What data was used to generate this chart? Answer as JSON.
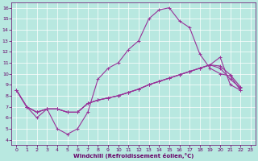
{
  "bg_color": "#b8e8e0",
  "line_color": "#993399",
  "marker": "+",
  "xlabel": "Windchill (Refroidissement éolien,°C)",
  "xlabel_color": "#660066",
  "tick_color": "#660066",
  "xlim": [
    -0.5,
    23.5
  ],
  "ylim": [
    3.5,
    16.5
  ],
  "xticks": [
    0,
    1,
    2,
    3,
    4,
    5,
    6,
    7,
    8,
    9,
    10,
    11,
    12,
    13,
    14,
    15,
    16,
    17,
    18,
    19,
    20,
    21,
    22,
    23
  ],
  "yticks": [
    4,
    5,
    6,
    7,
    8,
    9,
    10,
    11,
    12,
    13,
    14,
    15,
    16
  ],
  "series_x": [
    [
      0,
      1,
      2,
      3,
      4,
      5,
      6,
      7,
      8,
      9,
      10,
      11,
      12,
      13,
      14,
      15,
      16,
      17,
      18,
      19,
      20,
      21,
      22
    ],
    [
      0,
      1,
      2,
      3,
      4,
      5,
      6,
      7,
      8,
      9,
      10,
      11,
      12,
      13,
      14,
      15,
      16,
      17,
      18,
      19,
      20,
      21,
      22
    ],
    [
      0,
      1,
      2,
      3,
      4,
      5,
      6,
      7,
      8,
      9,
      10,
      11,
      12,
      13,
      14,
      15,
      16,
      17,
      18,
      19,
      20,
      21,
      22
    ],
    [
      0,
      1,
      2,
      3,
      4,
      5,
      6,
      7,
      8,
      9,
      10,
      11,
      12,
      13,
      14,
      15,
      16,
      17,
      18,
      19,
      20,
      21,
      22
    ]
  ],
  "series_y": [
    [
      8.5,
      7.0,
      6.0,
      6.8,
      5.0,
      4.5,
      5.0,
      6.5,
      9.5,
      10.5,
      11.0,
      12.2,
      13.0,
      15.0,
      15.8,
      16.0,
      14.8,
      14.2,
      11.8,
      10.5,
      10.0,
      9.8,
      8.5
    ],
    [
      8.5,
      7.0,
      6.5,
      6.8,
      6.8,
      6.5,
      6.5,
      7.3,
      7.6,
      7.8,
      8.0,
      8.3,
      8.6,
      9.0,
      9.3,
      9.6,
      9.9,
      10.2,
      10.5,
      10.8,
      11.5,
      9.0,
      8.5
    ],
    [
      8.5,
      7.0,
      6.5,
      6.8,
      6.8,
      6.5,
      6.5,
      7.3,
      7.6,
      7.8,
      8.0,
      8.3,
      8.6,
      9.0,
      9.3,
      9.6,
      9.9,
      10.2,
      10.5,
      10.8,
      10.7,
      9.9,
      8.8
    ],
    [
      8.5,
      7.0,
      6.5,
      6.8,
      6.8,
      6.5,
      6.5,
      7.3,
      7.6,
      7.8,
      8.0,
      8.3,
      8.6,
      9.0,
      9.3,
      9.6,
      9.9,
      10.2,
      10.5,
      10.8,
      10.5,
      9.5,
      8.7
    ]
  ]
}
